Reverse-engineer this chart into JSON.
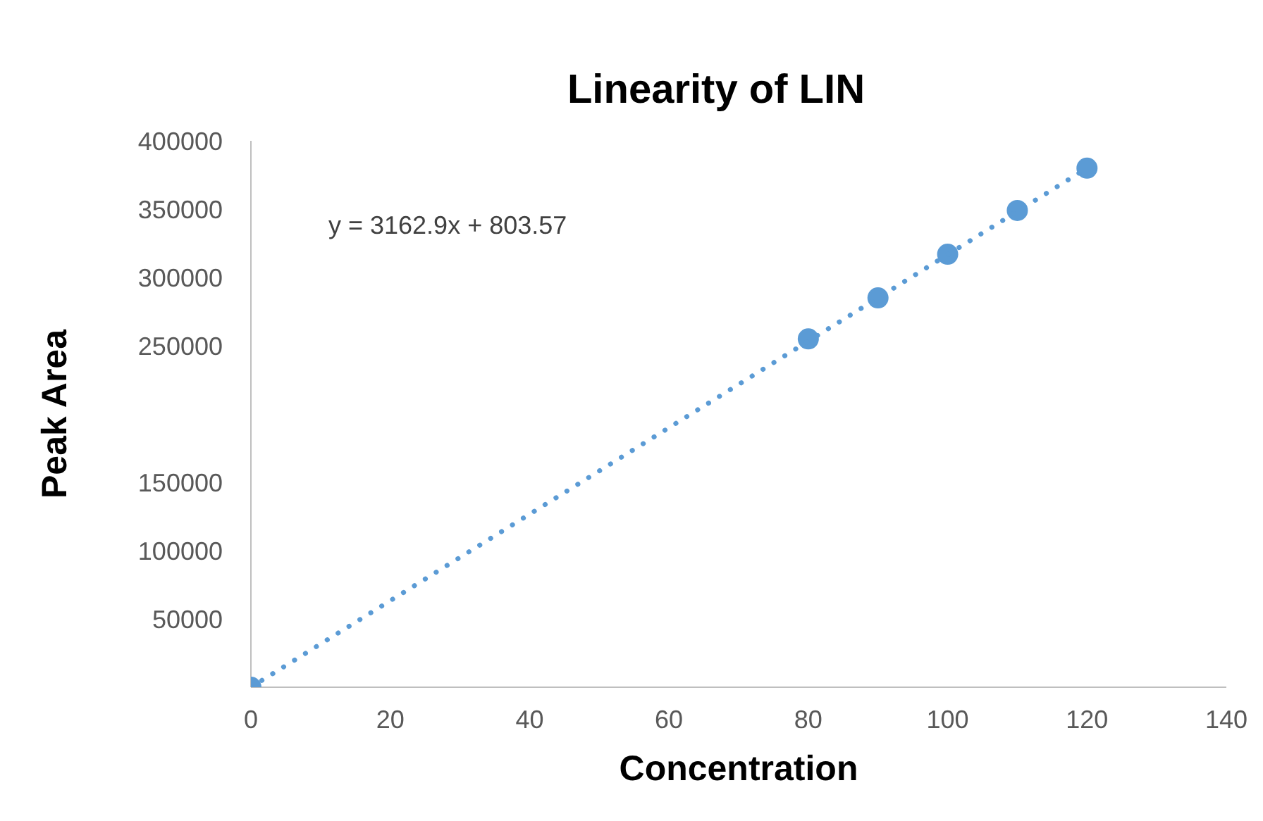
{
  "chart_data": {
    "type": "scatter",
    "title": "Linearity of LIN",
    "xlabel": "Concentration",
    "ylabel": "Peak Area",
    "annotations": [
      "y = 3162.9x + 803.57"
    ],
    "series": [
      {
        "type": "scatter",
        "color": "#5b9bd5",
        "x": [
          0,
          80,
          90,
          100,
          110,
          120
        ],
        "values": [
          0,
          255000,
          285000,
          317000,
          349000,
          380000
        ],
        "marker": "circle"
      },
      {
        "type": "line",
        "color": "#5b9bd5",
        "x": [
          0,
          120
        ],
        "values": [
          0,
          380000
        ],
        "line_style": "dotted",
        "marker": "none"
      }
    ],
    "xlim": [
      0,
      140
    ],
    "xticks": [
      0,
      20,
      40,
      60,
      80,
      100,
      120,
      140
    ],
    "ylim": [
      0,
      400000
    ],
    "yticks": [
      50000,
      100000,
      150000,
      250000,
      300000,
      350000,
      400000
    ],
    "grid": false,
    "legend": false
  }
}
